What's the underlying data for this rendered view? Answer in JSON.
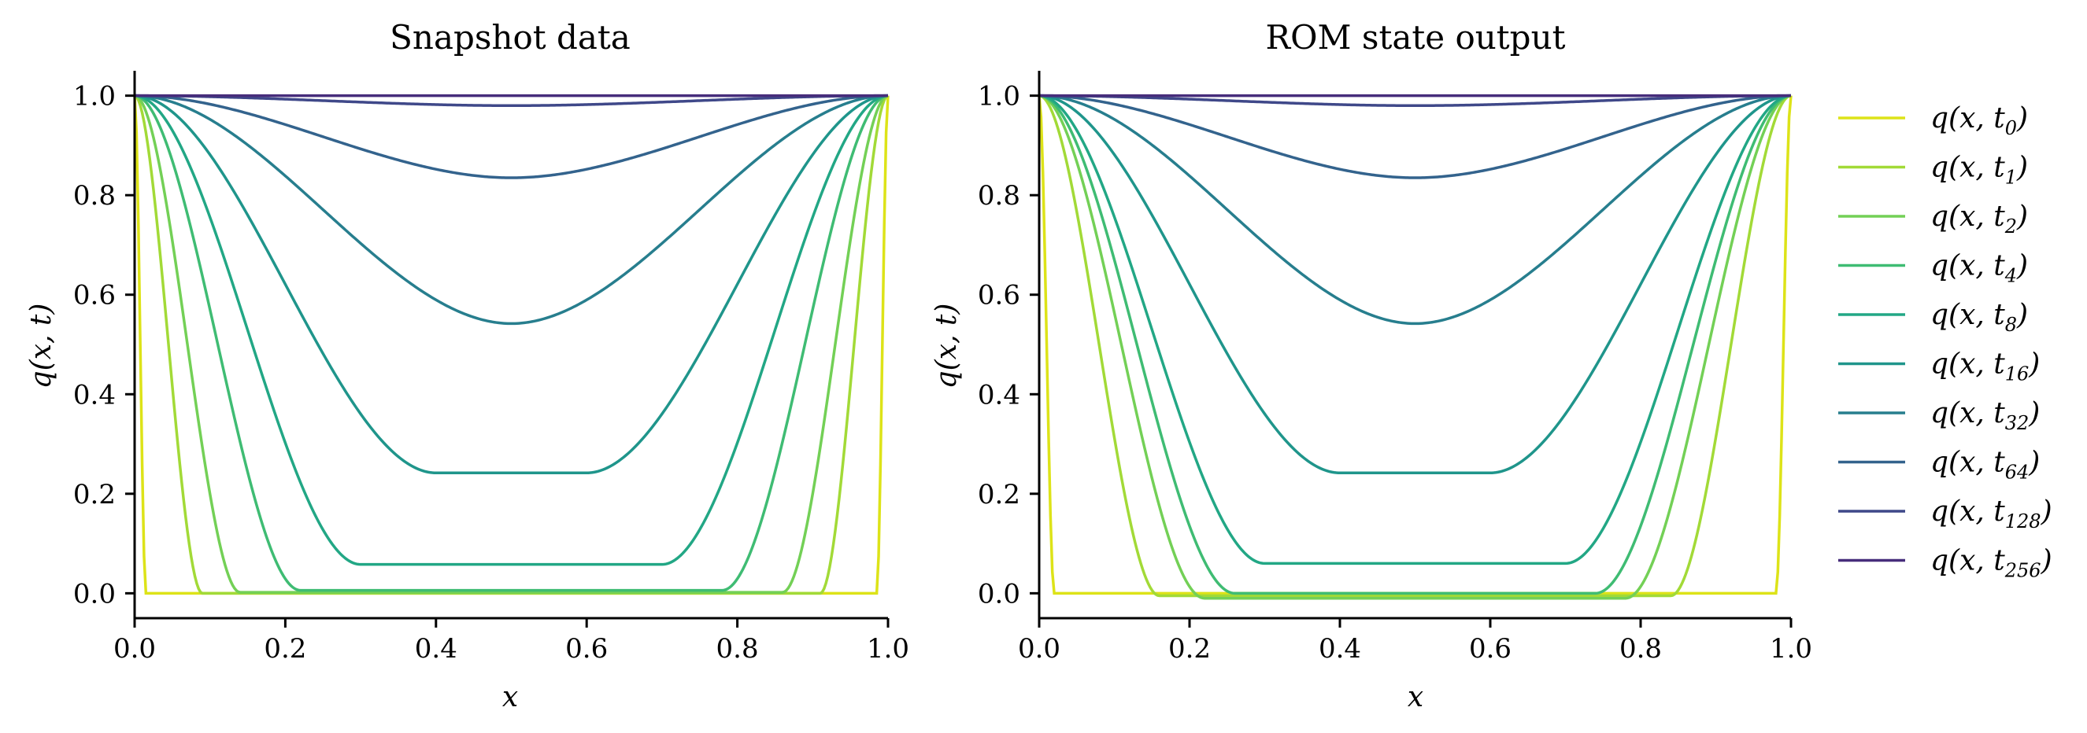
{
  "chart_data": [
    {
      "type": "line",
      "title": "Snapshot data",
      "xlabel": "x",
      "ylabel": "q(x, t)",
      "xlim": [
        0.0,
        1.0
      ],
      "ylim": [
        -0.05,
        1.05
      ],
      "xticks": [
        "0.0",
        "0.2",
        "0.4",
        "0.6",
        "0.8",
        "1.0"
      ],
      "yticks": [
        "0.0",
        "0.2",
        "0.4",
        "0.6",
        "0.8",
        "1.0"
      ],
      "series": [
        {
          "name": "q(x, t0)",
          "color": "#dde318",
          "edge_width": 0.015,
          "mid_value": 0.0
        },
        {
          "name": "q(x, t1)",
          "color": "#a2da37",
          "edge_width": 0.09,
          "mid_value": 0.0
        },
        {
          "name": "q(x, t2)",
          "color": "#73d056",
          "edge_width": 0.14,
          "mid_value": 0.002
        },
        {
          "name": "q(x, t4)",
          "color": "#3fbc73",
          "edge_width": 0.22,
          "mid_value": 0.006
        },
        {
          "name": "q(x, t8)",
          "color": "#22a785",
          "edge_width": 0.3,
          "mid_value": 0.058
        },
        {
          "name": "q(x, t16)",
          "color": "#1f958b",
          "edge_width": 0.4,
          "mid_value": 0.242
        },
        {
          "name": "q(x, t32)",
          "color": "#277e8e",
          "edge_width": 0.5,
          "mid_value": 0.542
        },
        {
          "name": "q(x, t64)",
          "color": "#33638d",
          "edge_width": 0.5,
          "mid_value": 0.835
        },
        {
          "name": "q(x, t128)",
          "color": "#3f4889",
          "edge_width": 0.5,
          "mid_value": 0.98
        },
        {
          "name": "q(x, t256)",
          "color": "#472d7b",
          "edge_width": 0.5,
          "mid_value": 1.0
        }
      ]
    },
    {
      "type": "line",
      "title": "ROM state output",
      "xlabel": "x",
      "ylabel": "q(x, t)",
      "xlim": [
        0.0,
        1.0
      ],
      "ylim": [
        -0.05,
        1.05
      ],
      "xticks": [
        "0.0",
        "0.2",
        "0.4",
        "0.6",
        "0.8",
        "1.0"
      ],
      "yticks": [
        "0.0",
        "0.2",
        "0.4",
        "0.6",
        "0.8",
        "1.0"
      ],
      "series": [
        {
          "name": "q(x, t0)",
          "color": "#dde318",
          "edge_width": 0.02,
          "mid_value": 0.0
        },
        {
          "name": "q(x, t1)",
          "color": "#a2da37",
          "edge_width": 0.16,
          "mid_value": -0.005
        },
        {
          "name": "q(x, t2)",
          "color": "#73d056",
          "edge_width": 0.22,
          "mid_value": -0.01
        },
        {
          "name": "q(x, t4)",
          "color": "#3fbc73",
          "edge_width": 0.26,
          "mid_value": 0.0
        },
        {
          "name": "q(x, t8)",
          "color": "#22a785",
          "edge_width": 0.3,
          "mid_value": 0.06
        },
        {
          "name": "q(x, t16)",
          "color": "#1f958b",
          "edge_width": 0.4,
          "mid_value": 0.242
        },
        {
          "name": "q(x, t32)",
          "color": "#277e8e",
          "edge_width": 0.5,
          "mid_value": 0.542
        },
        {
          "name": "q(x, t64)",
          "color": "#33638d",
          "edge_width": 0.5,
          "mid_value": 0.835
        },
        {
          "name": "q(x, t128)",
          "color": "#3f4889",
          "edge_width": 0.5,
          "mid_value": 0.98
        },
        {
          "name": "q(x, t256)",
          "color": "#472d7b",
          "edge_width": 0.5,
          "mid_value": 1.0
        }
      ]
    }
  ],
  "legend": {
    "placement": "right",
    "entries": [
      {
        "base": "q(x, t",
        "sub": "0",
        "close": ")",
        "color": "#dde318"
      },
      {
        "base": "q(x, t",
        "sub": "1",
        "close": ")",
        "color": "#a2da37"
      },
      {
        "base": "q(x, t",
        "sub": "2",
        "close": ")",
        "color": "#73d056"
      },
      {
        "base": "q(x, t",
        "sub": "4",
        "close": ")",
        "color": "#3fbc73"
      },
      {
        "base": "q(x, t",
        "sub": "8",
        "close": ")",
        "color": "#22a785"
      },
      {
        "base": "q(x, t",
        "sub": "16",
        "close": ")",
        "color": "#1f958b"
      },
      {
        "base": "q(x, t",
        "sub": "32",
        "close": ")",
        "color": "#277e8e"
      },
      {
        "base": "q(x, t",
        "sub": "64",
        "close": ")",
        "color": "#33638d"
      },
      {
        "base": "q(x, t",
        "sub": "128",
        "close": ")",
        "color": "#3f4889"
      },
      {
        "base": "q(x, t",
        "sub": "256",
        "close": ")",
        "color": "#472d7b"
      }
    ]
  }
}
